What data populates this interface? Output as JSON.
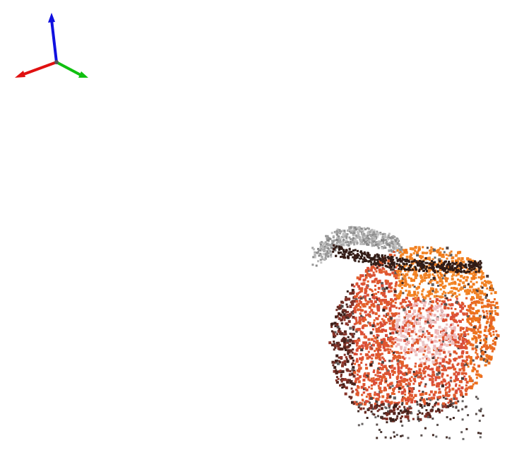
{
  "viewer": {
    "background": "#ffffff"
  },
  "axes_gizmo": {
    "x_axis_color": "#e01010",
    "y_axis_color": "#10c010",
    "z_axis_color": "#1010e0"
  },
  "point_cloud": {
    "palette": {
      "gray_light": "#c8c8c8",
      "gray_dark": "#6e6e6e",
      "orange": "#f07818",
      "red": "#d84a3a",
      "pink": "#f0b0b0",
      "dark": "#3a1e18"
    }
  }
}
